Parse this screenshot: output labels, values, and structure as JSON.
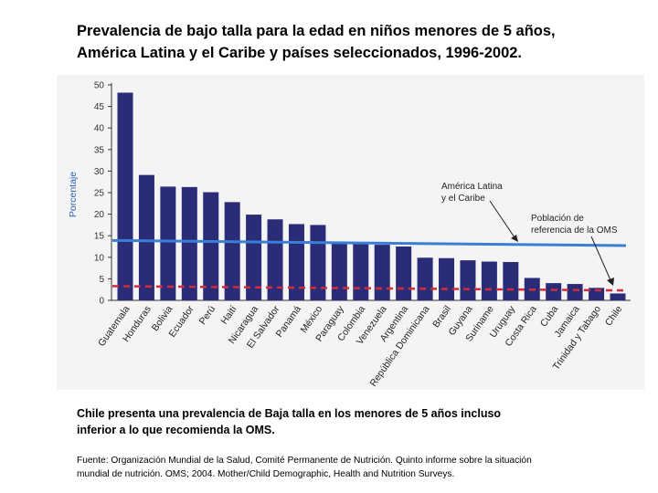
{
  "slide": {
    "title_lines": [
      "Prevalencia de bajo talla para la edad en niños menores de 5 años,",
      "América Latina y el Caribe y países seleccionados, 1996-2002."
    ],
    "conclusion_lines": [
      "Chile presenta una prevalencia de Baja talla en los menores de 5 años incluso",
      "inferior a lo que recomienda la OMS."
    ],
    "source_lines": [
      "Fuente:  Organización Mundial de la Salud, Comité Permanente de Nutrición.  Quinto informe sobre la situación",
      "mundial de nutrición. OMS; 2004.  Mother/Child Demographic, Health and Nutrition Surveys."
    ]
  },
  "chart_data": {
    "type": "bar",
    "ylabel": "Porcentaje",
    "ylim": [
      0,
      50
    ],
    "yticks": [
      0,
      5,
      10,
      15,
      20,
      25,
      30,
      35,
      40,
      45,
      50
    ],
    "grid": false,
    "bar_color": "#2b2c78",
    "categories": [
      "Guatemala",
      "Honduras",
      "Bolivia",
      "Ecuador",
      "Perú",
      "Haití",
      "Nicaragua",
      "El Salvador",
      "Panamá",
      "México",
      "Paraguay",
      "Colombia",
      "Venezuela",
      "Argentina",
      "República Dominicana",
      "Brasil",
      "Guyana",
      "Suriname",
      "Uruguay",
      "Costa Rica",
      "Cuba",
      "Jamaica",
      "Trinidad y Tabago",
      "Chile"
    ],
    "values": [
      48.2,
      29.1,
      26.4,
      26.3,
      25.1,
      22.8,
      19.9,
      18.8,
      17.7,
      17.5,
      13.6,
      13.2,
      12.9,
      12.5,
      9.9,
      9.8,
      9.3,
      9.0,
      8.9,
      5.2,
      4.0,
      3.8,
      2.9,
      1.6
    ],
    "reference_lines": [
      {
        "name": "América Latina y el Caribe",
        "label_lines": [
          "América Latina",
          "y el Caribe"
        ],
        "y_start": 13.9,
        "y_end": 12.7,
        "color": "#3a7fd6",
        "style": "solid"
      },
      {
        "name": "Población de referencia de la OMS",
        "label_lines": [
          "Población de",
          "referencia de la OMS"
        ],
        "y_start": 3.3,
        "y_end": 2.3,
        "color": "#d42a3a",
        "style": "dashed"
      }
    ]
  }
}
